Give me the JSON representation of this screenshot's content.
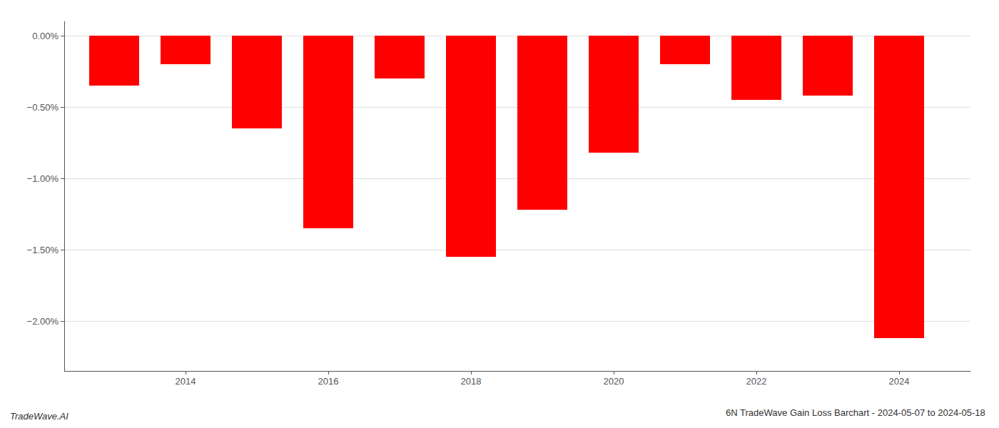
{
  "chart_data": {
    "type": "bar",
    "title": "6N TradeWave Gain Loss Barchart - 2024-05-07 to 2024-05-18",
    "annotations": [
      "TradeWave.AI"
    ],
    "x": [
      2013,
      2014,
      2015,
      2016,
      2017,
      2018,
      2019,
      2020,
      2021,
      2022,
      2023,
      2024
    ],
    "values": [
      -0.35,
      -0.2,
      -0.65,
      -1.35,
      -0.3,
      -1.55,
      -1.22,
      -0.82,
      -0.2,
      -0.45,
      -0.42,
      -2.12
    ],
    "color": "#ff0000",
    "xlim": [
      2012.3,
      2025.0
    ],
    "xticks": [
      2014,
      2016,
      2018,
      2020,
      2022,
      2024
    ],
    "ylim": [
      -2.35,
      0.1
    ],
    "yticks": [
      {
        "value": 0.0,
        "label": "0.00%"
      },
      {
        "value": -0.5,
        "label": "−0.50%"
      },
      {
        "value": -1.0,
        "label": "−1.00%"
      },
      {
        "value": -1.5,
        "label": "−1.50%"
      },
      {
        "value": -2.0,
        "label": "−2.00%"
      }
    ],
    "grid": true
  }
}
